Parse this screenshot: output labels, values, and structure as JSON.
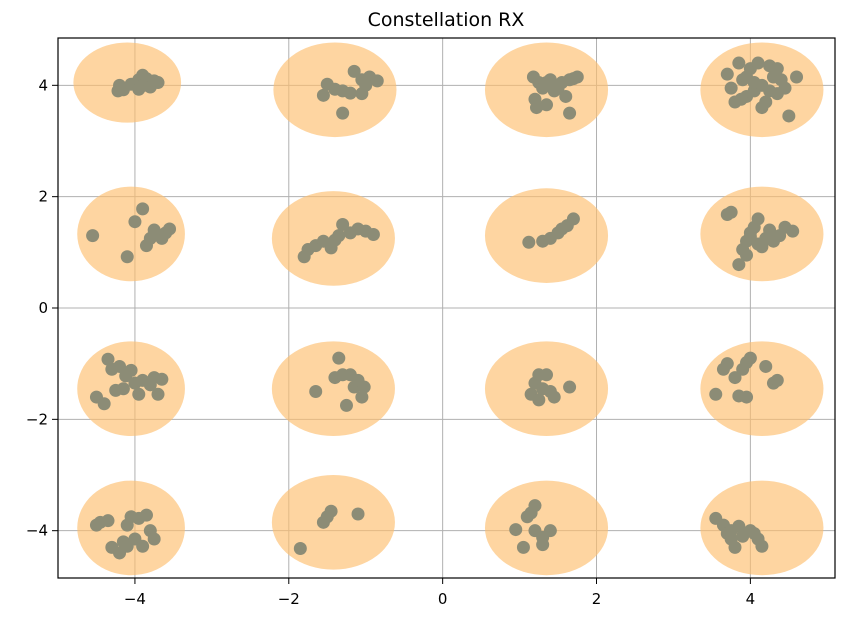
{
  "chart_data": {
    "type": "scatter",
    "title": "Constellation RX",
    "xlabel": "",
    "ylabel": "",
    "xlim": [
      -5.0,
      5.1
    ],
    "ylim": [
      -4.85,
      4.85
    ],
    "xticks": [
      -4,
      -2,
      0,
      2,
      4
    ],
    "xtick_labels": [
      "−4",
      "−2",
      "0",
      "2",
      "4"
    ],
    "yticks": [
      -4,
      -2,
      0,
      2,
      4
    ],
    "ytick_labels": [
      "−4",
      "−2",
      "0",
      "2",
      "4"
    ],
    "grid": true,
    "colors": {
      "region": "#fdbf6f",
      "region_alpha": 0.65,
      "point": "#8c8c76",
      "grid": "#b0b0b0",
      "axes": "#000000"
    },
    "regions": [
      {
        "cx": -4.1,
        "cy": 4.05,
        "rx": 0.7,
        "ry": 0.72
      },
      {
        "cx": -1.4,
        "cy": 3.92,
        "rx": 0.8,
        "ry": 0.85
      },
      {
        "cx": 1.35,
        "cy": 3.92,
        "rx": 0.8,
        "ry": 0.85
      },
      {
        "cx": 4.15,
        "cy": 3.92,
        "rx": 0.8,
        "ry": 0.85
      },
      {
        "cx": -4.05,
        "cy": 1.33,
        "rx": 0.7,
        "ry": 0.85
      },
      {
        "cx": -1.42,
        "cy": 1.25,
        "rx": 0.8,
        "ry": 0.85
      },
      {
        "cx": 1.35,
        "cy": 1.3,
        "rx": 0.8,
        "ry": 0.85
      },
      {
        "cx": 4.15,
        "cy": 1.33,
        "rx": 0.8,
        "ry": 0.85
      },
      {
        "cx": -4.05,
        "cy": -1.45,
        "rx": 0.7,
        "ry": 0.85
      },
      {
        "cx": -1.42,
        "cy": -1.45,
        "rx": 0.8,
        "ry": 0.85
      },
      {
        "cx": 1.35,
        "cy": -1.45,
        "rx": 0.8,
        "ry": 0.85
      },
      {
        "cx": 4.15,
        "cy": -1.45,
        "rx": 0.8,
        "ry": 0.85
      },
      {
        "cx": -4.05,
        "cy": -3.95,
        "rx": 0.7,
        "ry": 0.85
      },
      {
        "cx": -1.42,
        "cy": -3.85,
        "rx": 0.8,
        "ry": 0.85
      },
      {
        "cx": 1.35,
        "cy": -3.95,
        "rx": 0.8,
        "ry": 0.85
      },
      {
        "cx": 4.15,
        "cy": -3.95,
        "rx": 0.8,
        "ry": 0.85
      }
    ],
    "points": [
      {
        "x": -4.2,
        "y": 4.0
      },
      {
        "x": -4.15,
        "y": 3.92
      },
      {
        "x": -4.05,
        "y": 4.02
      },
      {
        "x": -3.95,
        "y": 4.1
      },
      {
        "x": -3.9,
        "y": 4.18
      },
      {
        "x": -3.85,
        "y": 4.12
      },
      {
        "x": -3.88,
        "y": 4.0
      },
      {
        "x": -3.95,
        "y": 3.93
      },
      {
        "x": -3.7,
        "y": 4.05
      },
      {
        "x": -3.8,
        "y": 3.97
      },
      {
        "x": -4.22,
        "y": 3.9
      },
      {
        "x": -3.75,
        "y": 4.08
      },
      {
        "x": -1.55,
        "y": 3.82
      },
      {
        "x": -1.5,
        "y": 4.02
      },
      {
        "x": -1.3,
        "y": 3.9
      },
      {
        "x": -1.2,
        "y": 3.86
      },
      {
        "x": -1.15,
        "y": 4.25
      },
      {
        "x": -1.05,
        "y": 4.1
      },
      {
        "x": -0.95,
        "y": 4.15
      },
      {
        "x": -0.85,
        "y": 4.08
      },
      {
        "x": -1.05,
        "y": 3.85
      },
      {
        "x": -1.3,
        "y": 3.5
      },
      {
        "x": -1.0,
        "y": 4.0
      },
      {
        "x": -1.4,
        "y": 3.93
      },
      {
        "x": 1.18,
        "y": 4.15
      },
      {
        "x": 1.25,
        "y": 4.05
      },
      {
        "x": 1.2,
        "y": 3.75
      },
      {
        "x": 1.22,
        "y": 3.6
      },
      {
        "x": 1.35,
        "y": 3.65
      },
      {
        "x": 1.3,
        "y": 3.95
      },
      {
        "x": 1.4,
        "y": 4.1
      },
      {
        "x": 1.45,
        "y": 3.9
      },
      {
        "x": 1.55,
        "y": 4.05
      },
      {
        "x": 1.6,
        "y": 3.8
      },
      {
        "x": 1.65,
        "y": 4.1
      },
      {
        "x": 1.7,
        "y": 4.12
      },
      {
        "x": 1.75,
        "y": 4.15
      },
      {
        "x": 1.65,
        "y": 3.5
      },
      {
        "x": 1.35,
        "y": 4.05
      },
      {
        "x": 1.5,
        "y": 3.95
      },
      {
        "x": 3.7,
        "y": 4.2
      },
      {
        "x": 3.75,
        "y": 3.95
      },
      {
        "x": 3.8,
        "y": 3.7
      },
      {
        "x": 3.85,
        "y": 4.4
      },
      {
        "x": 3.9,
        "y": 4.1
      },
      {
        "x": 3.95,
        "y": 3.8
      },
      {
        "x": 4.0,
        "y": 4.3
      },
      {
        "x": 4.05,
        "y": 3.9
      },
      {
        "x": 4.1,
        "y": 4.4
      },
      {
        "x": 4.15,
        "y": 4.0
      },
      {
        "x": 4.2,
        "y": 3.7
      },
      {
        "x": 4.25,
        "y": 4.35
      },
      {
        "x": 4.3,
        "y": 4.15
      },
      {
        "x": 4.35,
        "y": 3.85
      },
      {
        "x": 4.4,
        "y": 4.1
      },
      {
        "x": 4.45,
        "y": 3.95
      },
      {
        "x": 4.6,
        "y": 4.15
      },
      {
        "x": 4.5,
        "y": 3.45
      },
      {
        "x": 3.95,
        "y": 4.15
      },
      {
        "x": 4.05,
        "y": 4.05
      },
      {
        "x": 4.15,
        "y": 3.6
      },
      {
        "x": 4.25,
        "y": 3.9
      },
      {
        "x": 3.88,
        "y": 3.75
      },
      {
        "x": 4.35,
        "y": 4.3
      },
      {
        "x": -4.55,
        "y": 1.3
      },
      {
        "x": -4.1,
        "y": 0.92
      },
      {
        "x": -4.0,
        "y": 1.55
      },
      {
        "x": -3.9,
        "y": 1.78
      },
      {
        "x": -3.85,
        "y": 1.12
      },
      {
        "x": -3.8,
        "y": 1.25
      },
      {
        "x": -3.75,
        "y": 1.4
      },
      {
        "x": -3.65,
        "y": 1.25
      },
      {
        "x": -3.6,
        "y": 1.35
      },
      {
        "x": -3.55,
        "y": 1.42
      },
      {
        "x": -1.8,
        "y": 0.92
      },
      {
        "x": -1.75,
        "y": 1.05
      },
      {
        "x": -1.65,
        "y": 1.12
      },
      {
        "x": -1.55,
        "y": 1.2
      },
      {
        "x": -1.45,
        "y": 1.08
      },
      {
        "x": -1.4,
        "y": 1.22
      },
      {
        "x": -1.35,
        "y": 1.3
      },
      {
        "x": -1.3,
        "y": 1.5
      },
      {
        "x": -1.2,
        "y": 1.35
      },
      {
        "x": -1.1,
        "y": 1.42
      },
      {
        "x": -1.0,
        "y": 1.38
      },
      {
        "x": -0.9,
        "y": 1.32
      },
      {
        "x": 1.12,
        "y": 1.18
      },
      {
        "x": 1.3,
        "y": 1.2
      },
      {
        "x": 1.4,
        "y": 1.25
      },
      {
        "x": 1.5,
        "y": 1.35
      },
      {
        "x": 1.55,
        "y": 1.42
      },
      {
        "x": 1.62,
        "y": 1.48
      },
      {
        "x": 1.7,
        "y": 1.6
      },
      {
        "x": 3.7,
        "y": 1.68
      },
      {
        "x": 3.75,
        "y": 1.72
      },
      {
        "x": 3.85,
        "y": 0.78
      },
      {
        "x": 3.9,
        "y": 1.05
      },
      {
        "x": 3.95,
        "y": 1.2
      },
      {
        "x": 4.0,
        "y": 1.35
      },
      {
        "x": 4.05,
        "y": 1.45
      },
      {
        "x": 4.1,
        "y": 1.6
      },
      {
        "x": 4.15,
        "y": 1.1
      },
      {
        "x": 4.2,
        "y": 1.25
      },
      {
        "x": 4.25,
        "y": 1.4
      },
      {
        "x": 4.3,
        "y": 1.2
      },
      {
        "x": 4.38,
        "y": 1.3
      },
      {
        "x": 4.45,
        "y": 1.45
      },
      {
        "x": 4.55,
        "y": 1.38
      },
      {
        "x": 3.95,
        "y": 0.95
      },
      {
        "x": 4.1,
        "y": 1.15
      },
      {
        "x": 4.0,
        "y": 1.28
      },
      {
        "x": -4.5,
        "y": -1.6
      },
      {
        "x": -4.4,
        "y": -1.72
      },
      {
        "x": -4.35,
        "y": -0.92
      },
      {
        "x": -4.3,
        "y": -1.1
      },
      {
        "x": -4.25,
        "y": -1.48
      },
      {
        "x": -4.2,
        "y": -1.05
      },
      {
        "x": -4.15,
        "y": -1.45
      },
      {
        "x": -4.05,
        "y": -1.12
      },
      {
        "x": -4.0,
        "y": -1.35
      },
      {
        "x": -3.95,
        "y": -1.55
      },
      {
        "x": -3.9,
        "y": -1.3
      },
      {
        "x": -3.8,
        "y": -1.38
      },
      {
        "x": -3.75,
        "y": -1.25
      },
      {
        "x": -3.7,
        "y": -1.55
      },
      {
        "x": -3.65,
        "y": -1.28
      },
      {
        "x": -4.12,
        "y": -1.22
      },
      {
        "x": -1.65,
        "y": -1.5
      },
      {
        "x": -1.4,
        "y": -1.25
      },
      {
        "x": -1.35,
        "y": -0.9
      },
      {
        "x": -1.3,
        "y": -1.2
      },
      {
        "x": -1.25,
        "y": -1.75
      },
      {
        "x": -1.2,
        "y": -1.2
      },
      {
        "x": -1.15,
        "y": -1.42
      },
      {
        "x": -1.1,
        "y": -1.3
      },
      {
        "x": -1.05,
        "y": -1.6
      },
      {
        "x": -1.02,
        "y": -1.42
      },
      {
        "x": 1.15,
        "y": -1.55
      },
      {
        "x": 1.2,
        "y": -1.35
      },
      {
        "x": 1.25,
        "y": -1.2
      },
      {
        "x": 1.25,
        "y": -1.65
      },
      {
        "x": 1.3,
        "y": -1.45
      },
      {
        "x": 1.35,
        "y": -1.2
      },
      {
        "x": 1.4,
        "y": -1.5
      },
      {
        "x": 1.45,
        "y": -1.6
      },
      {
        "x": 1.65,
        "y": -1.42
      },
      {
        "x": 3.55,
        "y": -1.55
      },
      {
        "x": 3.65,
        "y": -1.1
      },
      {
        "x": 3.7,
        "y": -1.0
      },
      {
        "x": 3.8,
        "y": -1.25
      },
      {
        "x": 3.85,
        "y": -1.58
      },
      {
        "x": 3.9,
        "y": -1.1
      },
      {
        "x": 3.95,
        "y": -0.98
      },
      {
        "x": 4.0,
        "y": -0.9
      },
      {
        "x": 3.95,
        "y": -1.6
      },
      {
        "x": 4.2,
        "y": -1.05
      },
      {
        "x": 4.3,
        "y": -1.35
      },
      {
        "x": 4.35,
        "y": -1.3
      },
      {
        "x": -4.5,
        "y": -3.9
      },
      {
        "x": -4.45,
        "y": -3.85
      },
      {
        "x": -4.35,
        "y": -3.82
      },
      {
        "x": -4.3,
        "y": -4.3
      },
      {
        "x": -4.2,
        "y": -4.4
      },
      {
        "x": -4.15,
        "y": -4.2
      },
      {
        "x": -4.1,
        "y": -4.28
      },
      {
        "x": -4.05,
        "y": -3.75
      },
      {
        "x": -4.0,
        "y": -4.15
      },
      {
        "x": -3.95,
        "y": -3.78
      },
      {
        "x": -3.9,
        "y": -4.28
      },
      {
        "x": -3.85,
        "y": -3.72
      },
      {
        "x": -3.8,
        "y": -4.0
      },
      {
        "x": -3.75,
        "y": -4.15
      },
      {
        "x": -4.1,
        "y": -3.9
      },
      {
        "x": -1.85,
        "y": -4.32
      },
      {
        "x": -1.55,
        "y": -3.85
      },
      {
        "x": -1.5,
        "y": -3.75
      },
      {
        "x": -1.45,
        "y": -3.65
      },
      {
        "x": -1.1,
        "y": -3.7
      },
      {
        "x": 0.95,
        "y": -3.98
      },
      {
        "x": 1.05,
        "y": -4.3
      },
      {
        "x": 1.1,
        "y": -3.75
      },
      {
        "x": 1.15,
        "y": -3.68
      },
      {
        "x": 1.2,
        "y": -3.55
      },
      {
        "x": 1.2,
        "y": -4.0
      },
      {
        "x": 1.3,
        "y": -4.12
      },
      {
        "x": 1.3,
        "y": -4.25
      },
      {
        "x": 1.4,
        "y": -4.0
      },
      {
        "x": 3.55,
        "y": -3.78
      },
      {
        "x": 3.65,
        "y": -3.9
      },
      {
        "x": 3.7,
        "y": -4.05
      },
      {
        "x": 3.75,
        "y": -4.15
      },
      {
        "x": 3.8,
        "y": -4.3
      },
      {
        "x": 3.85,
        "y": -3.92
      },
      {
        "x": 3.9,
        "y": -4.1
      },
      {
        "x": 4.0,
        "y": -4.0
      },
      {
        "x": 4.05,
        "y": -4.05
      },
      {
        "x": 4.1,
        "y": -4.15
      },
      {
        "x": 4.15,
        "y": -4.28
      },
      {
        "x": 3.75,
        "y": -4.0
      }
    ]
  }
}
